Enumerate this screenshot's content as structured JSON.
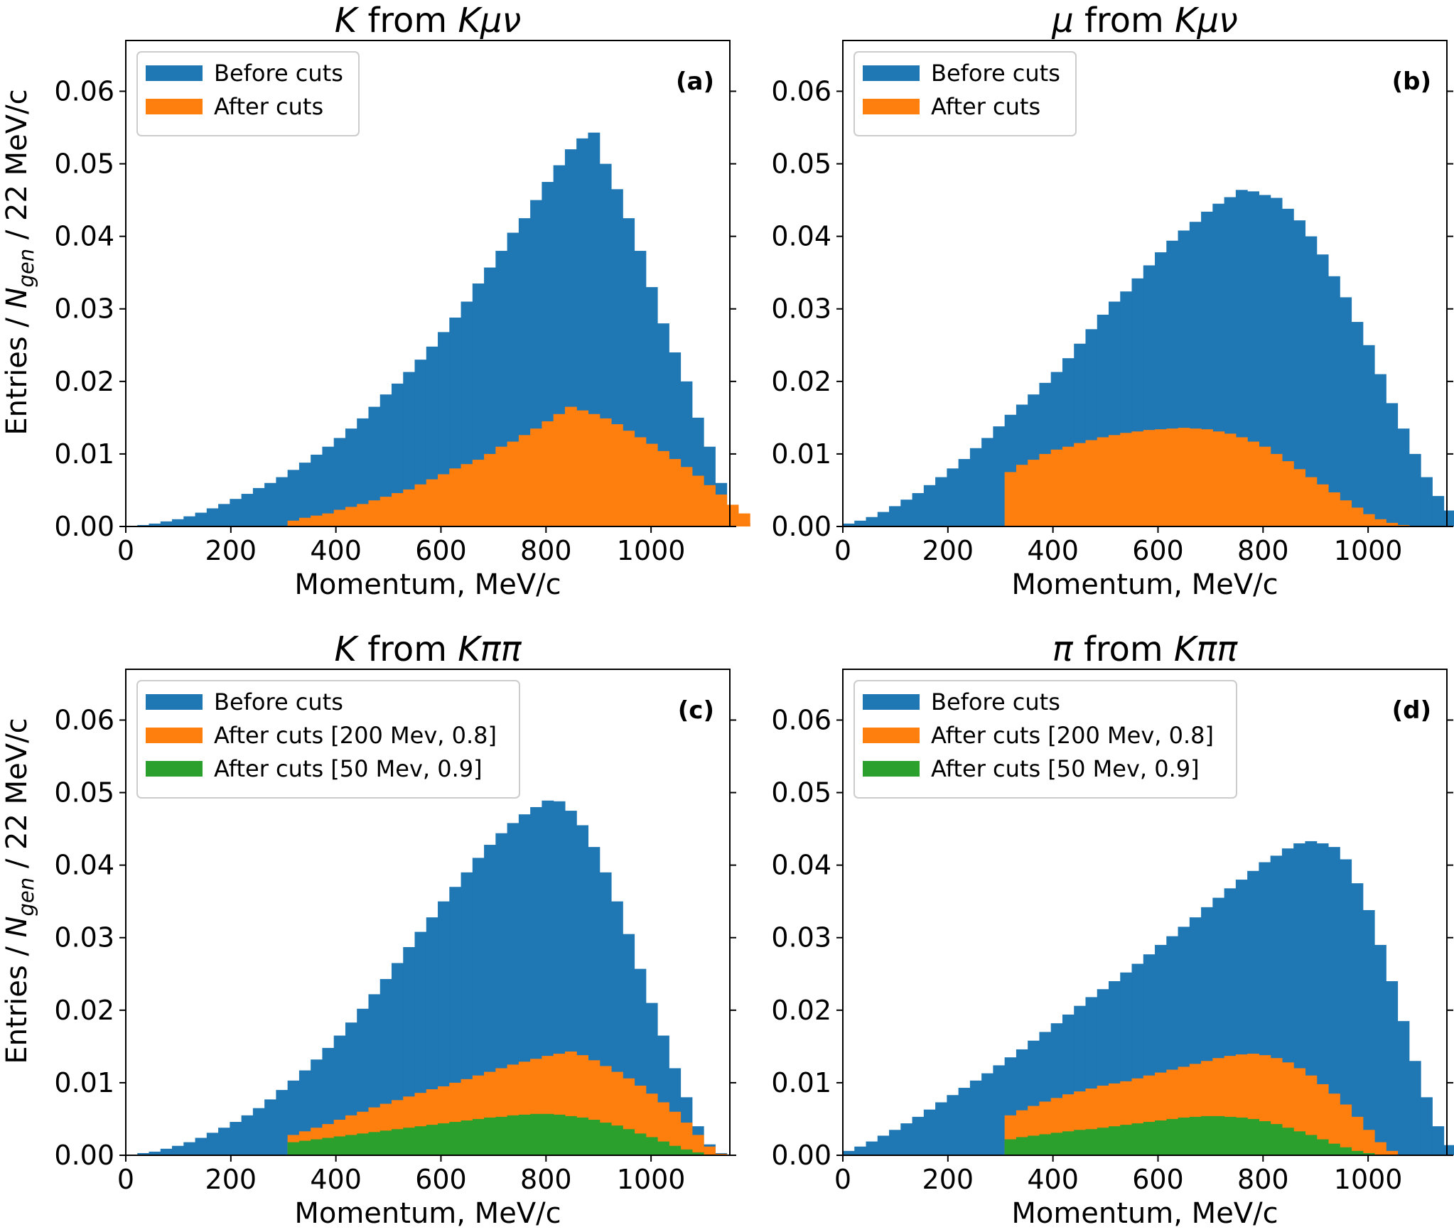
{
  "figure": {
    "y_label": "Entries / N_gen / 22 MeV/c",
    "y_label_parts": [
      "Entries / ",
      "N",
      "gen",
      " / 22 MeV/c"
    ]
  },
  "colors": {
    "before": "#1f77b4",
    "after": "#ff7f0e",
    "after_loose": "#2ca02c"
  },
  "chart_data": [
    {
      "type": "histogram",
      "panel_label": "(a)",
      "title_parts": [
        [
          "K",
          true
        ],
        [
          " from ",
          false
        ],
        [
          "Kμν",
          true
        ]
      ],
      "xlabel": "Momentum, MeV/c",
      "ylabel": "Entries / N_gen / 22 MeV/c",
      "xlim": [
        0,
        1150
      ],
      "ylim": [
        0,
        0.067
      ],
      "xticks": [
        "0",
        "200",
        "400",
        "600",
        "800",
        "1000"
      ],
      "yticks": [
        "0.00",
        "0.01",
        "0.02",
        "0.03",
        "0.04",
        "0.05",
        "0.06"
      ],
      "bin_width": 22,
      "bin_start": 0,
      "legend_position": "top-left",
      "series": [
        {
          "name": "Before cuts",
          "color_key": "before",
          "values": [
            0,
            0.0002,
            0.0004,
            0.0007,
            0.001,
            0.0014,
            0.0019,
            0.0025,
            0.0031,
            0.0038,
            0.0045,
            0.0053,
            0.006,
            0.0068,
            0.0078,
            0.0088,
            0.0099,
            0.011,
            0.0122,
            0.0135,
            0.0149,
            0.0165,
            0.0182,
            0.0197,
            0.0213,
            0.023,
            0.0248,
            0.0268,
            0.0288,
            0.031,
            0.0335,
            0.0357,
            0.038,
            0.0405,
            0.0425,
            0.045,
            0.0475,
            0.0498,
            0.052,
            0.0535,
            0.0543,
            0.05,
            0.0465,
            0.0425,
            0.038,
            0.033,
            0.028,
            0.024,
            0.02,
            0.015,
            0.011,
            0.006,
            0.0025,
            0.0005,
            0
          ]
        },
        {
          "name": "After cuts",
          "color_key": "after",
          "values": [
            0,
            0,
            0,
            0,
            0,
            0,
            0,
            0,
            0,
            0,
            0,
            0,
            0,
            0,
            0.0008,
            0.0012,
            0.0015,
            0.0018,
            0.0023,
            0.0027,
            0.0031,
            0.0036,
            0.0041,
            0.0046,
            0.0051,
            0.0058,
            0.0065,
            0.0072,
            0.008,
            0.0086,
            0.0092,
            0.01,
            0.011,
            0.0117,
            0.0126,
            0.0135,
            0.0145,
            0.0155,
            0.0165,
            0.016,
            0.0155,
            0.0149,
            0.0141,
            0.0132,
            0.0123,
            0.0114,
            0.0104,
            0.0093,
            0.0082,
            0.007,
            0.0057,
            0.0044,
            0.003,
            0.0018,
            0
          ]
        }
      ]
    },
    {
      "type": "histogram",
      "panel_label": "(b)",
      "title_parts": [
        [
          "μ",
          true
        ],
        [
          " from ",
          false
        ],
        [
          "Kμν",
          true
        ]
      ],
      "xlabel": "Momentum, MeV/c",
      "ylabel": "",
      "xlim": [
        0,
        1150
      ],
      "ylim": [
        0,
        0.067
      ],
      "xticks": [
        "0",
        "200",
        "400",
        "600",
        "800",
        "1000"
      ],
      "yticks": [
        "0.00",
        "0.01",
        "0.02",
        "0.03",
        "0.04",
        "0.05",
        "0.06"
      ],
      "bin_width": 22,
      "bin_start": 0,
      "legend_position": "top-left",
      "series": [
        {
          "name": "Before cuts",
          "color_key": "before",
          "values": [
            0.0004,
            0.0008,
            0.0013,
            0.002,
            0.0028,
            0.0037,
            0.0046,
            0.0057,
            0.0068,
            0.008,
            0.0093,
            0.0108,
            0.0122,
            0.0138,
            0.0154,
            0.0168,
            0.0182,
            0.0198,
            0.0213,
            0.0232,
            0.0252,
            0.0272,
            0.0292,
            0.031,
            0.0324,
            0.0342,
            0.036,
            0.0378,
            0.0394,
            0.0408,
            0.042,
            0.0434,
            0.0445,
            0.0454,
            0.0464,
            0.0462,
            0.0457,
            0.0453,
            0.0438,
            0.0422,
            0.04,
            0.0375,
            0.0345,
            0.0316,
            0.0282,
            0.025,
            0.021,
            0.017,
            0.0135,
            0.01,
            0.0068,
            0.0042,
            0.0022,
            0.001,
            0.0003,
            0,
            0
          ]
        },
        {
          "name": "After cuts",
          "color_key": "after",
          "values": [
            0,
            0,
            0,
            0,
            0,
            0,
            0,
            0,
            0,
            0,
            0,
            0,
            0,
            0,
            0.0075,
            0.0085,
            0.0092,
            0.01,
            0.0106,
            0.011,
            0.0115,
            0.0119,
            0.0123,
            0.0126,
            0.0129,
            0.0131,
            0.0133,
            0.0134,
            0.0135,
            0.0136,
            0.0135,
            0.0134,
            0.0131,
            0.0128,
            0.0123,
            0.0117,
            0.011,
            0.01,
            0.009,
            0.0079,
            0.0068,
            0.0058,
            0.0047,
            0.0036,
            0.0026,
            0.0017,
            0.001,
            0.0005,
            0.0002,
            0,
            0,
            0,
            0,
            0,
            0,
            0,
            0
          ]
        }
      ]
    },
    {
      "type": "histogram",
      "panel_label": "(c)",
      "title_parts": [
        [
          "K",
          true
        ],
        [
          " from ",
          false
        ],
        [
          "Kππ",
          true
        ]
      ],
      "xlabel": "Momentum, MeV/c",
      "ylabel": "Entries / N_gen / 22 MeV/c",
      "xlim": [
        0,
        1150
      ],
      "ylim": [
        0,
        0.067
      ],
      "xticks": [
        "0",
        "200",
        "400",
        "600",
        "800",
        "1000"
      ],
      "yticks": [
        "0.00",
        "0.01",
        "0.02",
        "0.03",
        "0.04",
        "0.05",
        "0.06"
      ],
      "bin_width": 22,
      "bin_start": 0,
      "legend_position": "top-left",
      "series": [
        {
          "name": "Before cuts",
          "color_key": "before",
          "values": [
            0,
            0.0003,
            0.0005,
            0.0009,
            0.0013,
            0.0018,
            0.0024,
            0.0031,
            0.0038,
            0.0046,
            0.0055,
            0.0065,
            0.0077,
            0.009,
            0.0103,
            0.0117,
            0.0132,
            0.0148,
            0.0165,
            0.0183,
            0.0202,
            0.0222,
            0.0243,
            0.0265,
            0.0287,
            0.0308,
            0.0328,
            0.035,
            0.037,
            0.039,
            0.041,
            0.0428,
            0.0444,
            0.0458,
            0.047,
            0.048,
            0.0489,
            0.0488,
            0.0475,
            0.0455,
            0.0425,
            0.039,
            0.035,
            0.0305,
            0.0257,
            0.021,
            0.0165,
            0.012,
            0.008,
            0.004,
            0.0015,
            0.0003,
            0
          ]
        },
        {
          "name": "After cuts [200 Mev, 0.8]",
          "color_key": "after",
          "values": [
            0,
            0,
            0,
            0,
            0,
            0,
            0,
            0,
            0,
            0,
            0,
            0,
            0,
            0,
            0.0028,
            0.0033,
            0.0038,
            0.0043,
            0.0049,
            0.0055,
            0.006,
            0.0066,
            0.0071,
            0.0076,
            0.0081,
            0.0086,
            0.0091,
            0.0095,
            0.01,
            0.0105,
            0.011,
            0.0115,
            0.012,
            0.0125,
            0.0129,
            0.0133,
            0.0137,
            0.014,
            0.0143,
            0.0138,
            0.0131,
            0.0123,
            0.0115,
            0.0106,
            0.0096,
            0.0085,
            0.0073,
            0.006,
            0.0045,
            0.0028,
            0.0012,
            0.0002,
            0
          ]
        },
        {
          "name": "After cuts [50 Mev, 0.9]",
          "color_key": "after_loose",
          "values": [
            0,
            0,
            0,
            0,
            0,
            0,
            0,
            0,
            0,
            0,
            0,
            0,
            0,
            0,
            0.0018,
            0.002,
            0.0022,
            0.0024,
            0.0026,
            0.0028,
            0.003,
            0.0032,
            0.0034,
            0.0036,
            0.0038,
            0.004,
            0.0042,
            0.0044,
            0.0046,
            0.0048,
            0.005,
            0.0052,
            0.0053,
            0.0055,
            0.0056,
            0.0057,
            0.0057,
            0.0056,
            0.0054,
            0.0052,
            0.0049,
            0.0045,
            0.0041,
            0.0036,
            0.003,
            0.0025,
            0.0019,
            0.0013,
            0.0008,
            0.0004,
            0.0001,
            0,
            0
          ]
        }
      ]
    },
    {
      "type": "histogram",
      "panel_label": "(d)",
      "title_parts": [
        [
          "π",
          true
        ],
        [
          " from ",
          false
        ],
        [
          "Kππ",
          true
        ]
      ],
      "xlabel": "Momentum, MeV/c",
      "ylabel": "",
      "xlim": [
        0,
        1150
      ],
      "ylim": [
        0,
        0.067
      ],
      "xticks": [
        "0",
        "200",
        "400",
        "600",
        "800",
        "1000"
      ],
      "yticks": [
        "0.00",
        "0.01",
        "0.02",
        "0.03",
        "0.04",
        "0.05",
        "0.06"
      ],
      "bin_width": 22,
      "bin_start": 0,
      "legend_position": "top-left",
      "series": [
        {
          "name": "Before cuts",
          "color_key": "before",
          "values": [
            0.0006,
            0.0012,
            0.0019,
            0.0027,
            0.0035,
            0.0044,
            0.0053,
            0.0063,
            0.0073,
            0.0083,
            0.0093,
            0.0103,
            0.0113,
            0.0124,
            0.0135,
            0.0146,
            0.0158,
            0.017,
            0.0182,
            0.0194,
            0.0206,
            0.0218,
            0.0229,
            0.024,
            0.0252,
            0.0264,
            0.0277,
            0.029,
            0.0302,
            0.0315,
            0.0328,
            0.0342,
            0.0355,
            0.0368,
            0.038,
            0.0392,
            0.0404,
            0.0413,
            0.0423,
            0.043,
            0.0433,
            0.043,
            0.0425,
            0.0408,
            0.0375,
            0.0338,
            0.029,
            0.024,
            0.0185,
            0.013,
            0.008,
            0.004,
            0.0014,
            0.0003,
            0,
            0,
            0
          ]
        },
        {
          "name": "After cuts [200 Mev, 0.8]",
          "color_key": "after",
          "values": [
            0,
            0,
            0,
            0,
            0,
            0,
            0,
            0,
            0,
            0,
            0,
            0,
            0,
            0,
            0.0055,
            0.0062,
            0.0068,
            0.0074,
            0.0079,
            0.0084,
            0.0088,
            0.0092,
            0.0096,
            0.0099,
            0.0102,
            0.0106,
            0.011,
            0.0114,
            0.0118,
            0.0122,
            0.0126,
            0.013,
            0.0134,
            0.0137,
            0.0139,
            0.014,
            0.0138,
            0.0134,
            0.0128,
            0.012,
            0.011,
            0.0098,
            0.0085,
            0.007,
            0.0053,
            0.0035,
            0.0018,
            0.0006,
            0.0001,
            0,
            0,
            0,
            0,
            0,
            0,
            0,
            0
          ]
        },
        {
          "name": "After cuts [50 Mev, 0.9]",
          "color_key": "after_loose",
          "values": [
            0,
            0,
            0,
            0,
            0,
            0,
            0,
            0,
            0,
            0,
            0,
            0,
            0,
            0,
            0.0022,
            0.0025,
            0.0027,
            0.0029,
            0.0031,
            0.0033,
            0.0035,
            0.0036,
            0.0038,
            0.004,
            0.0042,
            0.0044,
            0.0046,
            0.0048,
            0.005,
            0.0052,
            0.0053,
            0.0054,
            0.0054,
            0.0053,
            0.0052,
            0.005,
            0.0047,
            0.0043,
            0.0038,
            0.0033,
            0.0028,
            0.0022,
            0.0016,
            0.0011,
            0.0006,
            0.0003,
            0.0001,
            0,
            0,
            0,
            0,
            0,
            0,
            0,
            0,
            0,
            0
          ]
        }
      ]
    }
  ]
}
